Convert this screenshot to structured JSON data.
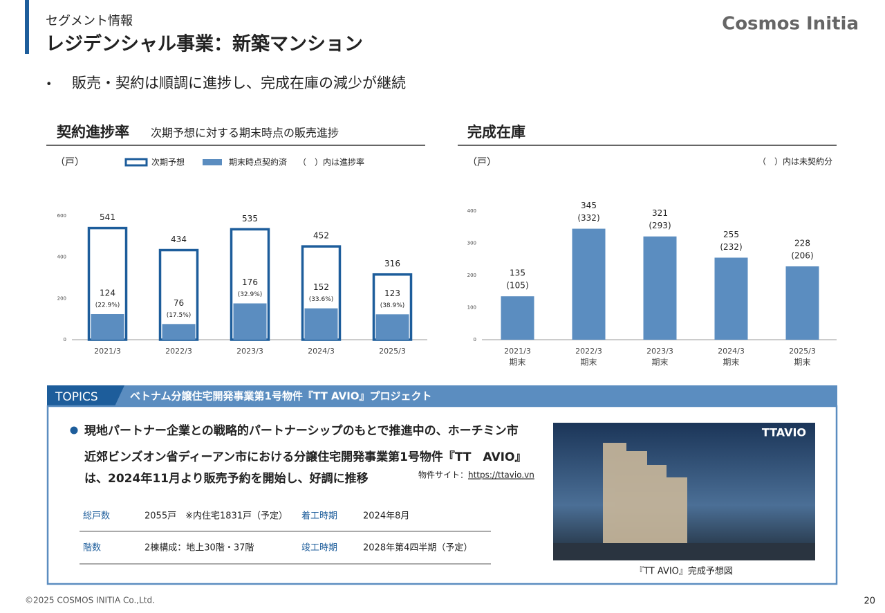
{
  "header": {
    "section": "セグメント情報",
    "title": "レジデンシャル事業：新築マンション",
    "logo": "Cosmos Initia"
  },
  "bullet": "販売・契約は順調に進捗し、完成在庫の減少が継続",
  "chart_data": [
    {
      "type": "bar",
      "title": "契約進捗率",
      "subtitle": "次期予想に対する期末時点の販売進捗",
      "unit": "（戸）",
      "note": "（　）内は進捗率",
      "categories": [
        "2021/3",
        "2022/3",
        "2023/3",
        "2024/3",
        "2025/3"
      ],
      "series": [
        {
          "name": "次期予想",
          "color": "#1d5d9b",
          "style": "outline",
          "values": [
            541,
            434,
            535,
            452,
            316
          ]
        },
        {
          "name": "期末時点契約済",
          "color": "#5b8dc0",
          "style": "solid",
          "values": [
            124,
            76,
            176,
            152,
            123
          ],
          "rate_labels": [
            "(22.9%)",
            "(17.5%)",
            "(32.9%)",
            "(33.6%)",
            "(38.9%)"
          ]
        }
      ],
      "ylim": [
        0,
        600
      ],
      "yticks": [
        0,
        200,
        400,
        600
      ]
    },
    {
      "type": "bar",
      "title": "完成在庫",
      "unit": "（戸）",
      "note": "（　）内は未契約分",
      "categories": [
        "2021/3",
        "2022/3",
        "2023/3",
        "2024/3",
        "2025/3"
      ],
      "category_suffix": "期末",
      "series": [
        {
          "color": "#5b8dc0",
          "style": "solid",
          "values": [
            135,
            345,
            321,
            255,
            228
          ],
          "unsold_labels": [
            "(105)",
            "(332)",
            "(293)",
            "(232)",
            "(206)"
          ]
        }
      ],
      "ylim": [
        0,
        400
      ],
      "yticks": [
        0,
        100,
        200,
        300,
        400
      ]
    }
  ],
  "topics": {
    "tag": "TOPICS",
    "heading": "ベトナム分譲住宅開発事業第1号物件『TT AVIO』プロジェクト",
    "lines": [
      "現地パートナー企業との戦略的パートナーシップのもとで推進中の、ホーチミン市",
      "近郊ビンズオン省ディーアン市における分譲住宅開発事業第1号物件『TT　AVIO』",
      "は、2024年11月より販売予約を開始し、好調に推移"
    ],
    "site_label": "物件サイト：",
    "site_url": "https://ttavio.vn",
    "table": [
      [
        "総戸数",
        "2055戸　※内住宅1831戸（予定）",
        "着工時期",
        "2024年8月"
      ],
      [
        "階数",
        "2棟構成：地上30階・37階",
        "竣工時期",
        "2028年第4四半期（予定）"
      ]
    ],
    "image_logo": "TTAVIO",
    "caption": "『TT AVIO』完成予想図"
  },
  "footer": {
    "copyright": "©2025 COSMOS INITIA Co.,Ltd.",
    "page": "20"
  }
}
